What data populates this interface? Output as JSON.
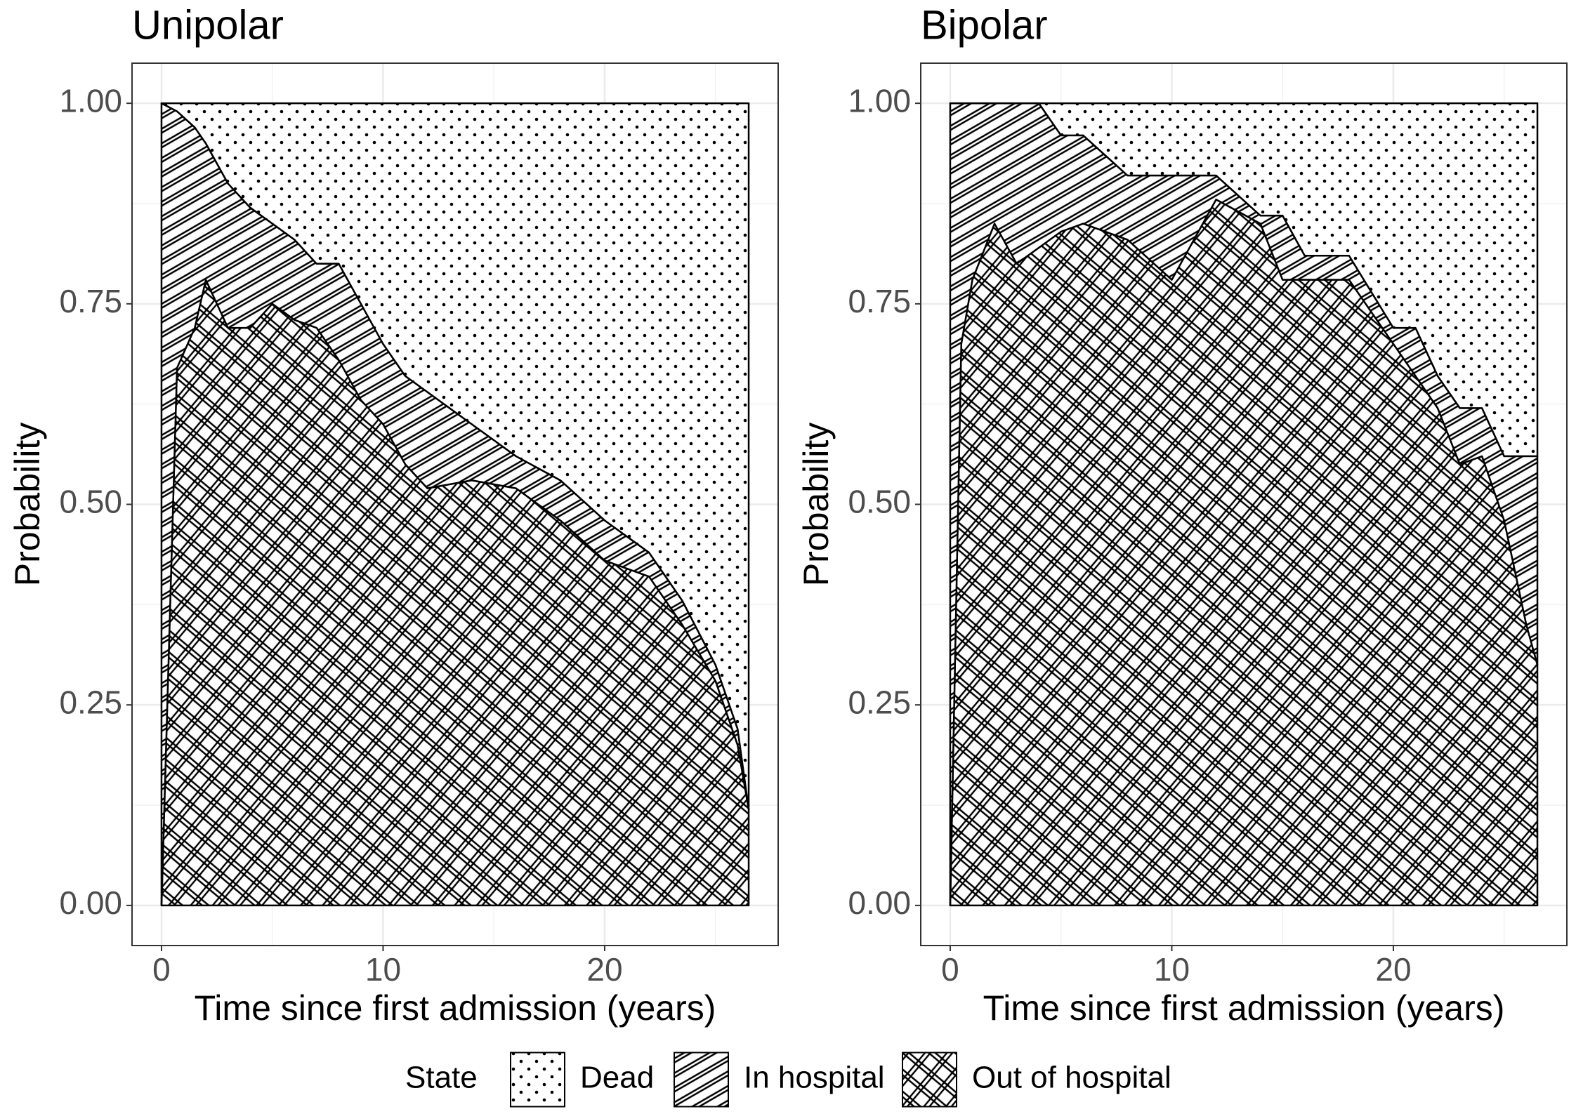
{
  "chart_data": [
    {
      "type": "stacked_area",
      "title": "Unipolar",
      "x_label": "Time since first admission (years)",
      "y_label": "Probability",
      "x": [
        0,
        0.7,
        1.5,
        2,
        3,
        4,
        5,
        6,
        7,
        8,
        9,
        10,
        11,
        12,
        14,
        16,
        18,
        20,
        22,
        23.5,
        25,
        26,
        26.5
      ],
      "series": [
        {
          "name": "Out of hospital",
          "pattern": "cross",
          "values": [
            0,
            0.67,
            0.72,
            0.78,
            0.72,
            0.72,
            0.75,
            0.73,
            0.72,
            0.68,
            0.63,
            0.6,
            0.55,
            0.52,
            0.53,
            0.52,
            0.48,
            0.43,
            0.41,
            0.35,
            0.28,
            0.2,
            0.12
          ]
        },
        {
          "name": "In hospital",
          "pattern": "stripes",
          "values": [
            1,
            0.32,
            0.25,
            0.17,
            0.18,
            0.15,
            0.1,
            0.1,
            0.08,
            0.12,
            0.12,
            0.1,
            0.11,
            0.12,
            0.07,
            0.04,
            0.05,
            0.05,
            0.03,
            0.03,
            0.02,
            0.02,
            0
          ]
        },
        {
          "name": "Dead",
          "pattern": "dots",
          "values": [
            0,
            0.01,
            0.03,
            0.05,
            0.1,
            0.13,
            0.15,
            0.17,
            0.2,
            0.2,
            0.25,
            0.3,
            0.34,
            0.36,
            0.4,
            0.44,
            0.47,
            0.52,
            0.56,
            0.62,
            0.7,
            0.78,
            0.88
          ]
        }
      ],
      "xlim": [
        -1.33,
        27.83
      ],
      "xticks": [
        0,
        10,
        20
      ],
      "ylim": [
        -0.05,
        1.05
      ],
      "yticks": [
        {
          "value": 0,
          "label": "0.00"
        },
        {
          "value": 0.25,
          "label": "0.25"
        },
        {
          "value": 0.5,
          "label": "0.50"
        },
        {
          "value": 0.75,
          "label": "0.75"
        },
        {
          "value": 1,
          "label": "1.00"
        }
      ],
      "grid": true
    },
    {
      "type": "stacked_area",
      "title": "Bipolar",
      "x_label": "Time since first admission (years)",
      "y_label": "Probability",
      "x": [
        0,
        0.5,
        1,
        2,
        3,
        4,
        5,
        6,
        8,
        10,
        12,
        14,
        15,
        16,
        18,
        20,
        21,
        22,
        23,
        24,
        25,
        26,
        26.5
      ],
      "series": [
        {
          "name": "Out of hospital",
          "pattern": "cross",
          "values": [
            0,
            0.7,
            0.78,
            0.85,
            0.8,
            0.82,
            0.84,
            0.85,
            0.83,
            0.78,
            0.88,
            0.85,
            0.78,
            0.78,
            0.78,
            0.7,
            0.66,
            0.62,
            0.55,
            0.56,
            0.48,
            0.35,
            0.3
          ]
        },
        {
          "name": "In hospital",
          "pattern": "stripes",
          "values": [
            1,
            0.3,
            0.22,
            0.15,
            0.2,
            0.18,
            0.12,
            0.11,
            0.08,
            0.13,
            0.03,
            0.01,
            0.08,
            0.03,
            0.03,
            0.02,
            0.06,
            0.04,
            0.07,
            0.06,
            0.08,
            0.21,
            0.26
          ]
        },
        {
          "name": "Dead",
          "pattern": "dots",
          "values": [
            0,
            0,
            0,
            0,
            0,
            0,
            0.04,
            0.04,
            0.09,
            0.09,
            0.09,
            0.14,
            0.14,
            0.19,
            0.19,
            0.28,
            0.28,
            0.34,
            0.38,
            0.38,
            0.44,
            0.44,
            0.44
          ]
        }
      ],
      "xlim": [
        -1.33,
        27.83
      ],
      "xticks": [
        0,
        10,
        20
      ],
      "ylim": [
        -0.05,
        1.05
      ],
      "yticks": [
        {
          "value": 0,
          "label": "0.00"
        },
        {
          "value": 0.25,
          "label": "0.25"
        },
        {
          "value": 0.5,
          "label": "0.50"
        },
        {
          "value": 0.75,
          "label": "0.75"
        },
        {
          "value": 1,
          "label": "1.00"
        }
      ],
      "grid": true
    }
  ],
  "legend": {
    "title": "State"
  }
}
